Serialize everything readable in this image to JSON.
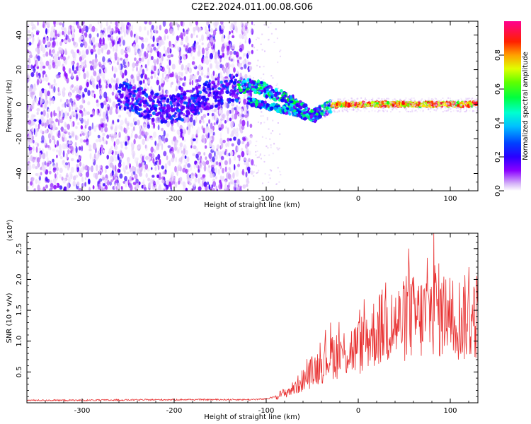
{
  "figure": {
    "title": "C2E2.2024.011.00.08.G06"
  },
  "chart_data": [
    {
      "type": "heatmap",
      "title": "C2E2.2024.011.00.08.G06",
      "xlabel": "Height of straight line (km)",
      "ylabel": "Frequency (Hz)",
      "xlim": [
        -360,
        130
      ],
      "ylim": [
        -50,
        48
      ],
      "xticks": [
        -300,
        -200,
        -100,
        0,
        100
      ],
      "yticks": [
        -40,
        -20,
        0,
        20,
        40
      ],
      "colorbar": {
        "label": "Normalized spectral amplitude",
        "range": [
          0,
          1
        ],
        "ticks": [
          0.0,
          0.2,
          0.4,
          0.6,
          0.8
        ],
        "tick_labels": [
          "0.0",
          "0.2",
          "0.4",
          "0.6",
          "0.8"
        ],
        "colormap": [
          "#ffffff",
          "#d8b8f8",
          "#8a00ff",
          "#3a00ff",
          "#0000ff",
          "#00a0ff",
          "#00ffff",
          "#00ff60",
          "#00ff00",
          "#a0ff00",
          "#ffff00",
          "#ff8000",
          "#ff0000",
          "#ff0080"
        ]
      },
      "features": {
        "noise_region_x": [
          -360,
          -115
        ],
        "noise_frequency_spread_hz": [
          -50,
          48
        ],
        "signal_track": [
          {
            "x": -260,
            "y": 6
          },
          {
            "x": -240,
            "y": 2
          },
          {
            "x": -220,
            "y": -2
          },
          {
            "x": -200,
            "y": -3
          },
          {
            "x": -180,
            "y": 1
          },
          {
            "x": -160,
            "y": 6
          },
          {
            "x": -140,
            "y": 9
          },
          {
            "x": -120,
            "y": 11
          },
          {
            "x": -110,
            "y": 10
          },
          {
            "x": -100,
            "y": 8
          },
          {
            "x": -90,
            "y": 6
          },
          {
            "x": -80,
            "y": 4
          },
          {
            "x": -70,
            "y": 1
          },
          {
            "x": -60,
            "y": -3
          },
          {
            "x": -50,
            "y": -7
          },
          {
            "x": -40,
            "y": -4
          },
          {
            "x": -30,
            "y": -1
          },
          {
            "x": -20,
            "y": 0
          },
          {
            "x": 0,
            "y": 0
          },
          {
            "x": 50,
            "y": 0
          },
          {
            "x": 100,
            "y": 0
          },
          {
            "x": 130,
            "y": 0
          }
        ],
        "second_branch": [
          {
            "x": -120,
            "y": 2
          },
          {
            "x": -100,
            "y": -1
          },
          {
            "x": -80,
            "y": -3
          },
          {
            "x": -60,
            "y": -6
          },
          {
            "x": -45,
            "y": -8
          }
        ]
      }
    },
    {
      "type": "line",
      "xlabel": "Height of straight line (km)",
      "ylabel": "SNR (10 * v/v)",
      "y_multiplier": "(x10⁴)",
      "xlim": [
        -360,
        130
      ],
      "ylim": [
        0,
        2.75
      ],
      "xticks": [
        -300,
        -200,
        -100,
        0,
        100
      ],
      "yticks": [
        0.5,
        1.0,
        1.5,
        2.0,
        2.5
      ],
      "ytick_labels": [
        "0.5",
        "1.0",
        "1.5",
        "2.0",
        "2.5"
      ],
      "color": "#e83030",
      "series": [
        {
          "x": [
            -360,
            -300,
            -200,
            -150,
            -120,
            -100,
            -90,
            -80,
            -70,
            -60,
            -50,
            -40,
            -30,
            -20,
            -10,
            0,
            10,
            20,
            30,
            40,
            50,
            55,
            60,
            70,
            80,
            85,
            90,
            100,
            110,
            120,
            125,
            130
          ],
          "values": [
            0.04,
            0.04,
            0.05,
            0.05,
            0.05,
            0.06,
            0.1,
            0.15,
            0.22,
            0.35,
            0.48,
            0.6,
            0.75,
            0.75,
            0.8,
            0.85,
            1.0,
            1.1,
            1.2,
            1.2,
            1.25,
            1.4,
            1.3,
            1.3,
            1.45,
            1.5,
            1.35,
            1.35,
            1.3,
            1.3,
            1.3,
            1.35
          ]
        }
      ],
      "peaks": [
        {
          "x": -30,
          "y": 1.3
        },
        {
          "x": 0,
          "y": 1.25
        },
        {
          "x": 30,
          "y": 1.95
        },
        {
          "x": 55,
          "y": 2.5
        },
        {
          "x": 75,
          "y": 2.35
        },
        {
          "x": 82,
          "y": 2.75
        },
        {
          "x": 95,
          "y": 2.0
        },
        {
          "x": 120,
          "y": 2.2
        }
      ]
    }
  ]
}
